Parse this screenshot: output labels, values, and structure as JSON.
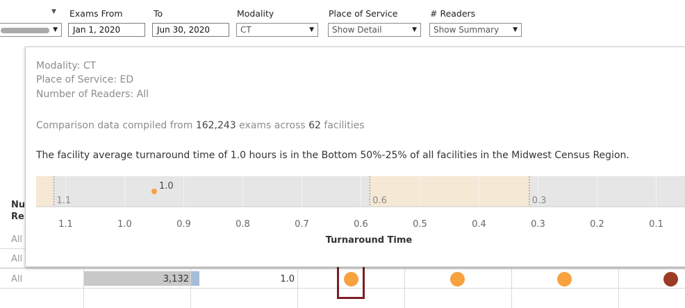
{
  "filters": {
    "exams_from": {
      "label": "Exams From",
      "value": "Jan 1, 2020"
    },
    "to": {
      "label": "To",
      "value": "Jun 30, 2020"
    },
    "modality": {
      "label": "Modality",
      "value": "CT"
    },
    "place_of_service": {
      "label": "Place of Service",
      "value": "Show Detail"
    },
    "readers": {
      "label": "# Readers",
      "value": "Show Summary"
    }
  },
  "table": {
    "header_fragment_1": "Nu",
    "header_fragment_2": "Re",
    "rows": [
      "All",
      "All",
      "All"
    ],
    "exam_count": "3,132",
    "avg_time": "1.0"
  },
  "tooltip": {
    "modality": "Modality: CT",
    "place_of_service": "Place of Service: ED",
    "readers": "Number of Readers: All",
    "comparison_prefix": "Comparison data compiled from ",
    "comparison_exams": "162,243",
    "comparison_mid": " exams across ",
    "comparison_facilities": "62",
    "comparison_suffix": " facilities",
    "summary": "The facility average turnaround time of 1.0 hours is in the Bottom 50%-25% of all facilities in the Midwest Census Region."
  },
  "chart_data": {
    "type": "scatter",
    "xlabel": "Turnaround Time",
    "x_reversed": true,
    "xlim": [
      1.15,
      0.05
    ],
    "ticks": [
      1.1,
      1.0,
      0.9,
      0.8,
      0.7,
      0.6,
      0.5,
      0.4,
      0.3,
      0.2,
      0.1
    ],
    "tick_labels": [
      "1.1",
      "1.0",
      "0.9",
      "0.8",
      "0.7",
      "0.6",
      "0.5",
      "0.4",
      "0.3",
      "0.2",
      "0.1"
    ],
    "reference_lines": [
      {
        "value": 1.12,
        "label": "1.1"
      },
      {
        "value": 0.585,
        "label": "0.6"
      },
      {
        "value": 0.315,
        "label": "0.3"
      }
    ],
    "bands": [
      {
        "from": 1.15,
        "to": 1.12
      },
      {
        "from": 0.585,
        "to": 0.315
      }
    ],
    "point": {
      "x": 0.95,
      "label": "1.0",
      "color": "#f7a23f"
    }
  },
  "colors": {
    "band": "#f5e8d5",
    "track": "#e6e6e6",
    "dot_orange": "#f7a23f",
    "dot_dark": "#9b3b25",
    "highlight_box": "#7b1e23",
    "bar_gray": "#c8c8c8",
    "bar_blue": "#a6bcd9"
  }
}
